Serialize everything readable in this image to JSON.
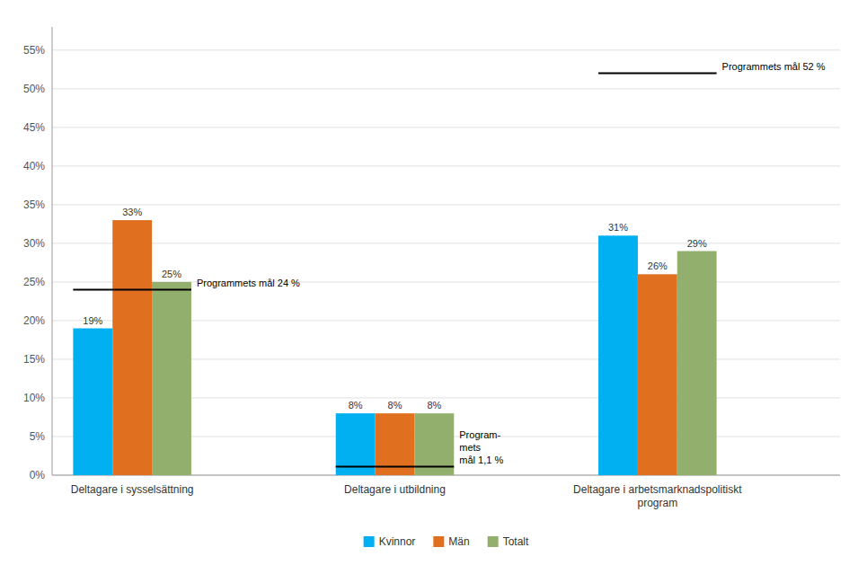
{
  "chart_data": {
    "type": "bar",
    "categories": [
      "Deltagare i sysselsättning",
      "Deltagare i utbildning",
      "Deltagare i arbetsmarknadspolitiskt\nprogram"
    ],
    "series": [
      {
        "name": "Kvinnor",
        "color": "#00B0F0",
        "values": [
          0.19,
          0.08,
          0.31
        ],
        "value_labels": [
          "19%",
          "8%",
          "31%"
        ]
      },
      {
        "name": "Män",
        "color": "#E07020",
        "values": [
          0.33,
          0.08,
          0.26
        ],
        "value_labels": [
          "33%",
          "8%",
          "26%"
        ]
      },
      {
        "name": "Totalt",
        "color": "#92AF6E",
        "values": [
          0.25,
          0.08,
          0.29
        ],
        "value_labels": [
          "25%",
          "8%",
          "29%"
        ]
      }
    ],
    "ylim": [
      0,
      0.58
    ],
    "yticks": [
      {
        "value": 0.0,
        "label": "0%"
      },
      {
        "value": 0.05,
        "label": "5%"
      },
      {
        "value": 0.1,
        "label": "10%"
      },
      {
        "value": 0.15,
        "label": "15%"
      },
      {
        "value": 0.2,
        "label": "20%"
      },
      {
        "value": 0.25,
        "label": "25%"
      },
      {
        "value": 0.3,
        "label": "30%"
      },
      {
        "value": 0.35,
        "label": "35%"
      },
      {
        "value": 0.4,
        "label": "40%"
      },
      {
        "value": 0.45,
        "label": "45%"
      },
      {
        "value": 0.5,
        "label": "50%"
      },
      {
        "value": 0.55,
        "label": "55%"
      }
    ],
    "annotations": [
      {
        "text": "Programmets mål 24 %",
        "y": 0.24,
        "category": "Deltagare i sysselsättning"
      },
      {
        "text": "Program-\nmets\nmål 1,1 %",
        "y": 0.011,
        "category": "Deltagare i utbildning"
      },
      {
        "text": "Programmets mål 52 %",
        "y": 0.52,
        "category": "Deltagare i arbetsmarknadspolitiskt\nprogram"
      }
    ],
    "grid": true,
    "legend": "bottom",
    "data_labels": true
  }
}
